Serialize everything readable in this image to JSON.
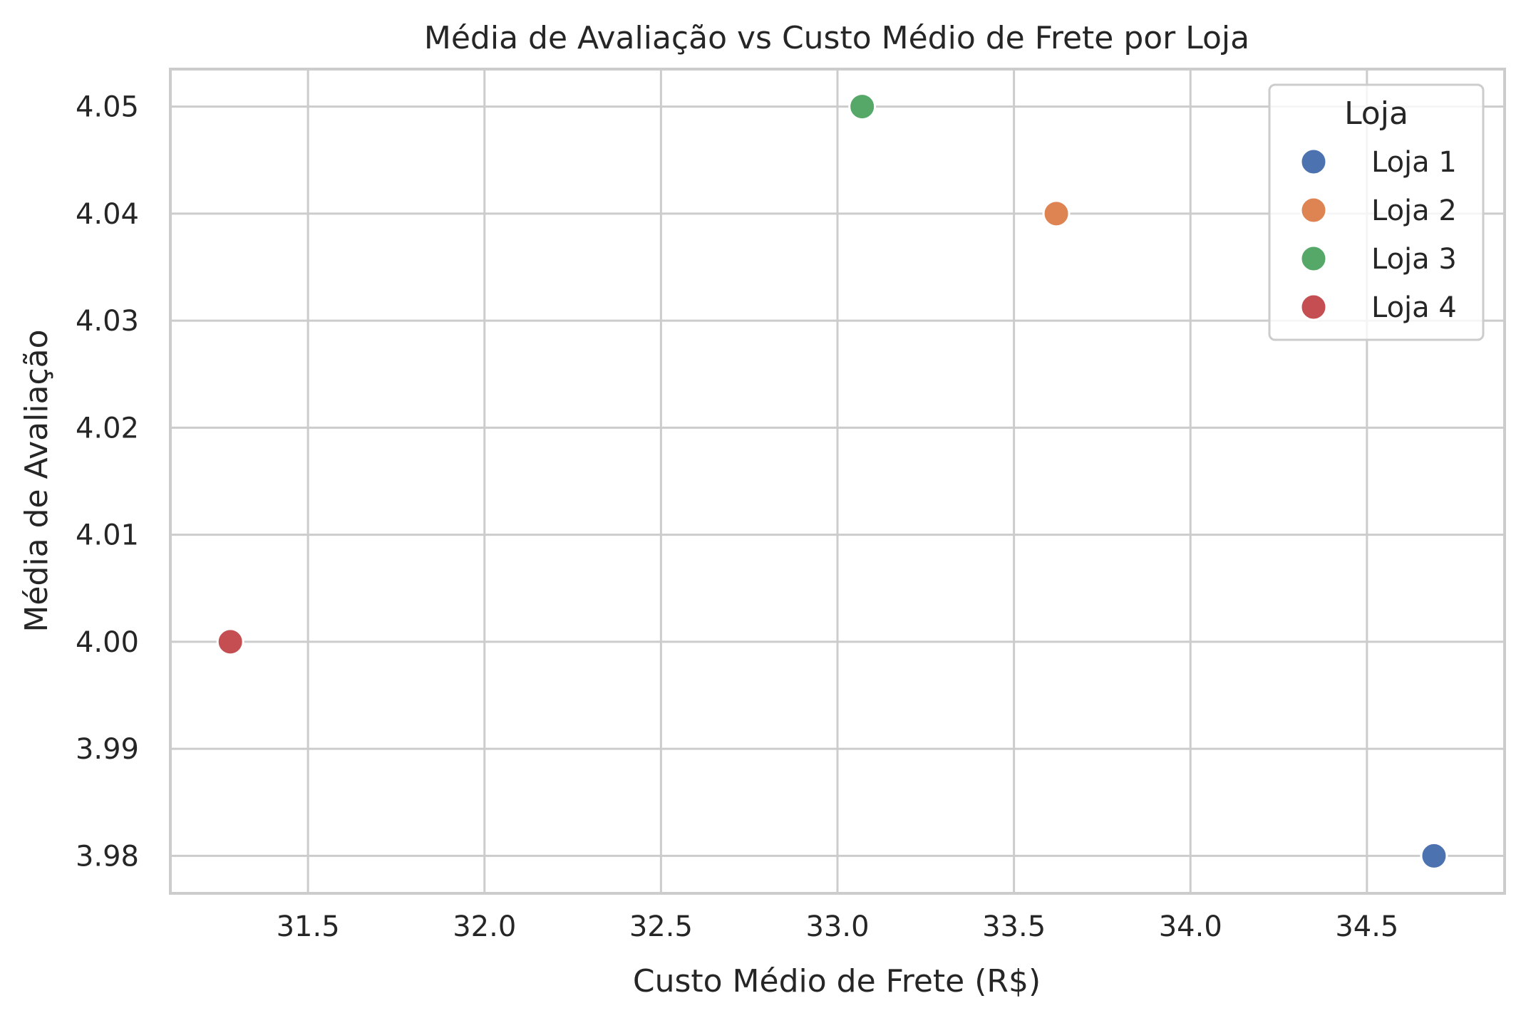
{
  "chart_data": {
    "type": "scatter",
    "title": "Média de Avaliação vs Custo Médio de Frete por Loja",
    "xlabel": "Custo Médio de Frete (R$)",
    "ylabel": "Média de Avaliação",
    "xlim": [
      31.11,
      34.89
    ],
    "ylim": [
      3.9765,
      4.0535
    ],
    "x_ticks": [
      31.5,
      32.0,
      32.5,
      33.0,
      33.5,
      34.0,
      34.5
    ],
    "x_tick_labels": [
      "31.5",
      "32.0",
      "32.5",
      "33.0",
      "33.5",
      "34.0",
      "34.5"
    ],
    "y_ticks": [
      3.98,
      3.99,
      4.0,
      4.01,
      4.02,
      4.03,
      4.04,
      4.05
    ],
    "y_tick_labels": [
      "3.98",
      "3.99",
      "4.00",
      "4.01",
      "4.02",
      "4.03",
      "4.04",
      "4.05"
    ],
    "grid": true,
    "legend": {
      "title": "Loja",
      "placement": "top-right"
    },
    "series": [
      {
        "name": "Loja 1",
        "color": "#4c72b0",
        "x": [
          34.69
        ],
        "y": [
          3.98
        ]
      },
      {
        "name": "Loja 2",
        "color": "#dd8452",
        "x": [
          33.62
        ],
        "y": [
          4.04
        ]
      },
      {
        "name": "Loja 3",
        "color": "#55a868",
        "x": [
          33.07
        ],
        "y": [
          4.05
        ]
      },
      {
        "name": "Loja 4",
        "color": "#c44e52",
        "x": [
          31.28
        ],
        "y": [
          4.0
        ]
      }
    ]
  }
}
